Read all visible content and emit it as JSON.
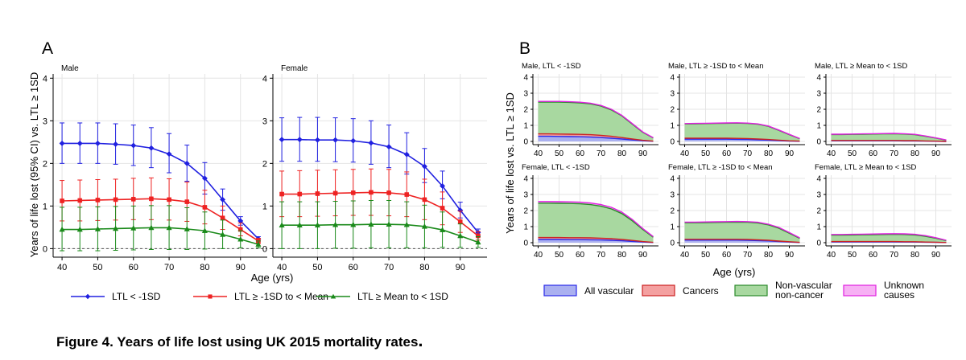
{
  "caption": "Figure 4. Years of life lost using UK 2015 mortality rates",
  "caption_period": ".",
  "colors": {
    "blue": "#2020e0",
    "red": "#ee2222",
    "green": "#1a8a1a",
    "vascular_fill": "#aab0f0",
    "vascular_line": "#2a2ae8",
    "cancer_fill": "#f4a0a0",
    "cancer_line": "#cc2222",
    "nonvasc_fill": "#a8d8a0",
    "nonvasc_line": "#2a8a2a",
    "unknown_fill": "#f7b0f4",
    "unknown_line": "#e020e0",
    "grid": "#e4e4e4"
  },
  "chart_data": [
    {
      "type": "line",
      "panel_label": "A",
      "ylabel": "Years of life lost (95% CI) vs. LTL ≥ 1SD",
      "xlabel": "Age (yrs)",
      "ylim": [
        -0.2,
        4.1
      ],
      "yticks": [
        0,
        1,
        2,
        3,
        4
      ],
      "xticks": [
        40,
        50,
        60,
        70,
        80,
        90
      ],
      "x": [
        40,
        45,
        50,
        55,
        60,
        65,
        70,
        75,
        80,
        85,
        90,
        95
      ],
      "legend_position": "bottom",
      "legend": [
        "LTL < -1SD",
        "LTL ≥ -1SD to < Mean",
        "LTL ≥ Mean to < 1SD"
      ],
      "subpanels": [
        {
          "title": "Male",
          "series": [
            {
              "color": "blue",
              "marker": "diamond",
              "values": [
                2.47,
                2.47,
                2.47,
                2.45,
                2.42,
                2.36,
                2.22,
                2.0,
                1.65,
                1.15,
                0.65,
                0.23
              ],
              "lower": [
                2.0,
                2.0,
                2.0,
                1.98,
                1.95,
                1.9,
                1.78,
                1.58,
                1.28,
                0.9,
                0.55,
                0.18
              ],
              "upper": [
                2.95,
                2.95,
                2.95,
                2.93,
                2.9,
                2.84,
                2.7,
                2.43,
                2.02,
                1.4,
                0.75,
                0.28
              ]
            },
            {
              "color": "red",
              "marker": "square",
              "values": [
                1.12,
                1.13,
                1.14,
                1.15,
                1.16,
                1.17,
                1.15,
                1.1,
                0.97,
                0.72,
                0.45,
                0.18
              ],
              "lower": [
                0.65,
                0.65,
                0.66,
                0.67,
                0.68,
                0.68,
                0.67,
                0.64,
                0.58,
                0.45,
                0.3,
                0.12
              ],
              "upper": [
                1.6,
                1.61,
                1.62,
                1.63,
                1.65,
                1.66,
                1.64,
                1.56,
                1.37,
                1.0,
                0.6,
                0.24
              ]
            },
            {
              "color": "green",
              "marker": "triangle",
              "values": [
                0.45,
                0.45,
                0.46,
                0.47,
                0.48,
                0.49,
                0.49,
                0.46,
                0.42,
                0.33,
                0.22,
                0.1
              ],
              "lower": [
                -0.05,
                -0.05,
                -0.05,
                -0.04,
                -0.03,
                -0.02,
                -0.02,
                -0.02,
                -0.01,
                0.0,
                0.02,
                0.02
              ],
              "upper": [
                0.97,
                0.97,
                0.98,
                0.99,
                1.0,
                1.01,
                1.01,
                0.96,
                0.86,
                0.67,
                0.42,
                0.18
              ]
            }
          ]
        },
        {
          "title": "Female",
          "series": [
            {
              "color": "blue",
              "marker": "diamond",
              "values": [
                2.56,
                2.56,
                2.55,
                2.55,
                2.53,
                2.48,
                2.39,
                2.21,
                1.93,
                1.47,
                0.9,
                0.38
              ],
              "lower": [
                2.05,
                2.05,
                2.05,
                2.04,
                2.03,
                1.98,
                1.9,
                1.75,
                1.55,
                1.17,
                0.72,
                0.3
              ],
              "upper": [
                3.07,
                3.08,
                3.08,
                3.07,
                3.05,
                3.0,
                2.9,
                2.72,
                2.35,
                1.82,
                1.09,
                0.46
              ]
            },
            {
              "color": "red",
              "marker": "square",
              "values": [
                1.28,
                1.28,
                1.29,
                1.3,
                1.31,
                1.32,
                1.31,
                1.27,
                1.15,
                0.95,
                0.63,
                0.3
              ],
              "lower": [
                0.75,
                0.75,
                0.76,
                0.77,
                0.78,
                0.78,
                0.77,
                0.75,
                0.68,
                0.56,
                0.38,
                0.2
              ],
              "upper": [
                1.82,
                1.83,
                1.84,
                1.85,
                1.86,
                1.87,
                1.86,
                1.8,
                1.63,
                1.33,
                0.88,
                0.4
              ]
            },
            {
              "color": "green",
              "marker": "triangle",
              "values": [
                0.55,
                0.55,
                0.55,
                0.56,
                0.56,
                0.57,
                0.57,
                0.56,
                0.52,
                0.44,
                0.3,
                0.15
              ],
              "lower": [
                0.0,
                0.0,
                0.0,
                0.01,
                0.01,
                0.02,
                0.02,
                0.02,
                0.02,
                0.03,
                0.03,
                0.03
              ],
              "upper": [
                1.1,
                1.1,
                1.1,
                1.11,
                1.12,
                1.13,
                1.13,
                1.1,
                1.02,
                0.86,
                0.58,
                0.28
              ]
            }
          ]
        }
      ]
    },
    {
      "type": "area",
      "stacked": true,
      "panel_label": "B",
      "ylabel": "Years of life lost vs. LTL ≥ 1SD",
      "xlabel": "Age (yrs)",
      "ylim": [
        -0.2,
        4.2
      ],
      "yticks": [
        0,
        1,
        2,
        3,
        4
      ],
      "xticks": [
        40,
        50,
        60,
        70,
        80,
        90
      ],
      "x": [
        40,
        45,
        50,
        55,
        60,
        65,
        70,
        75,
        80,
        85,
        90,
        95
      ],
      "legend_position": "bottom",
      "legend": [
        {
          "label": "All vascular",
          "fill": "vascular_fill",
          "line": "vascular_line"
        },
        {
          "label": "Cancers",
          "fill": "cancer_fill",
          "line": "cancer_line"
        },
        {
          "label": "Non-vascular\nnon-cancer",
          "fill": "nonvasc_fill",
          "line": "nonvasc_line"
        },
        {
          "label": "Unknown\ncauses",
          "fill": "unknown_fill",
          "line": "unknown_line"
        }
      ],
      "subpanels": [
        {
          "title": "Male, LTL < -1SD",
          "stacks": {
            "vascular": [
              0.32,
              0.32,
              0.31,
              0.3,
              0.29,
              0.27,
              0.24,
              0.2,
              0.15,
              0.09,
              0.04,
              0.01
            ],
            "cancer": [
              0.15,
              0.15,
              0.15,
              0.15,
              0.15,
              0.15,
              0.14,
              0.12,
              0.09,
              0.06,
              0.03,
              0.01
            ],
            "nonvasc": [
              1.98,
              1.98,
              1.99,
              1.98,
              1.96,
              1.92,
              1.82,
              1.64,
              1.35,
              0.93,
              0.5,
              0.2
            ],
            "unknown": [
              0.04,
              0.04,
              0.04,
              0.04,
              0.04,
              0.04,
              0.04,
              0.04,
              0.03,
              0.03,
              0.02,
              0.01
            ]
          }
        },
        {
          "title": "Male, LTL ≥ -1SD to < Mean",
          "stacks": {
            "vascular": [
              0.14,
              0.14,
              0.14,
              0.14,
              0.14,
              0.13,
              0.12,
              0.1,
              0.08,
              0.05,
              0.02,
              0.01
            ],
            "cancer": [
              0.06,
              0.06,
              0.06,
              0.06,
              0.06,
              0.06,
              0.06,
              0.05,
              0.04,
              0.03,
              0.02,
              0.01
            ],
            "nonvasc": [
              0.89,
              0.9,
              0.91,
              0.92,
              0.93,
              0.95,
              0.94,
              0.92,
              0.82,
              0.61,
              0.38,
              0.15
            ],
            "unknown": [
              0.02,
              0.02,
              0.02,
              0.02,
              0.02,
              0.02,
              0.02,
              0.02,
              0.02,
              0.02,
              0.02,
              0.01
            ]
          }
        },
        {
          "title": "Male, LTL ≥ Mean to < 1SD",
          "stacks": {
            "vascular": [
              0.04,
              0.04,
              0.04,
              0.04,
              0.04,
              0.04,
              0.04,
              0.03,
              0.03,
              0.02,
              0.01,
              0.0
            ],
            "cancer": [
              0.02,
              0.02,
              0.02,
              0.02,
              0.02,
              0.02,
              0.02,
              0.02,
              0.02,
              0.01,
              0.01,
              0.0
            ],
            "nonvasc": [
              0.37,
              0.37,
              0.38,
              0.39,
              0.4,
              0.41,
              0.42,
              0.41,
              0.37,
              0.29,
              0.19,
              0.08
            ],
            "unknown": [
              0.02,
              0.02,
              0.02,
              0.02,
              0.02,
              0.02,
              0.02,
              0.02,
              0.02,
              0.02,
              0.01,
              0.01
            ]
          }
        },
        {
          "title": "Female, LTL < -1SD",
          "stacks": {
            "vascular": [
              0.2,
              0.2,
              0.2,
              0.19,
              0.19,
              0.18,
              0.17,
              0.15,
              0.12,
              0.08,
              0.04,
              0.01
            ],
            "cancer": [
              0.12,
              0.12,
              0.12,
              0.12,
              0.12,
              0.12,
              0.11,
              0.1,
              0.08,
              0.06,
              0.03,
              0.01
            ],
            "nonvasc": [
              2.14,
              2.14,
              2.13,
              2.13,
              2.11,
              2.07,
              1.99,
              1.85,
              1.61,
              1.22,
              0.75,
              0.32
            ],
            "unknown": [
              0.1,
              0.1,
              0.1,
              0.1,
              0.1,
              0.1,
              0.1,
              0.1,
              0.09,
              0.08,
              0.06,
              0.04
            ]
          }
        },
        {
          "title": "Female, LTL ≥ -1SD to < Mean",
          "stacks": {
            "vascular": [
              0.16,
              0.16,
              0.16,
              0.16,
              0.16,
              0.16,
              0.15,
              0.13,
              0.11,
              0.07,
              0.04,
              0.01
            ],
            "cancer": [
              0.05,
              0.05,
              0.05,
              0.05,
              0.05,
              0.05,
              0.05,
              0.05,
              0.04,
              0.03,
              0.02,
              0.01
            ],
            "nonvasc": [
              1.03,
              1.03,
              1.04,
              1.05,
              1.06,
              1.07,
              1.07,
              1.05,
              0.96,
              0.8,
              0.53,
              0.25
            ],
            "unknown": [
              0.04,
              0.04,
              0.04,
              0.04,
              0.04,
              0.04,
              0.04,
              0.04,
              0.04,
              0.05,
              0.04,
              0.03
            ]
          }
        },
        {
          "title": "Female, LTL ≥ Mean to < 1SD",
          "stacks": {
            "vascular": [
              0.05,
              0.05,
              0.05,
              0.05,
              0.05,
              0.05,
              0.05,
              0.04,
              0.04,
              0.03,
              0.02,
              0.01
            ],
            "cancer": [
              0.02,
              0.02,
              0.02,
              0.02,
              0.02,
              0.02,
              0.02,
              0.02,
              0.02,
              0.01,
              0.01,
              0.0
            ],
            "nonvasc": [
              0.4,
              0.4,
              0.41,
              0.42,
              0.43,
              0.44,
              0.45,
              0.45,
              0.42,
              0.36,
              0.25,
              0.12
            ],
            "unknown": [
              0.04,
              0.04,
              0.04,
              0.04,
              0.04,
              0.04,
              0.04,
              0.04,
              0.04,
              0.04,
              0.03,
              0.02
            ]
          }
        }
      ]
    }
  ]
}
